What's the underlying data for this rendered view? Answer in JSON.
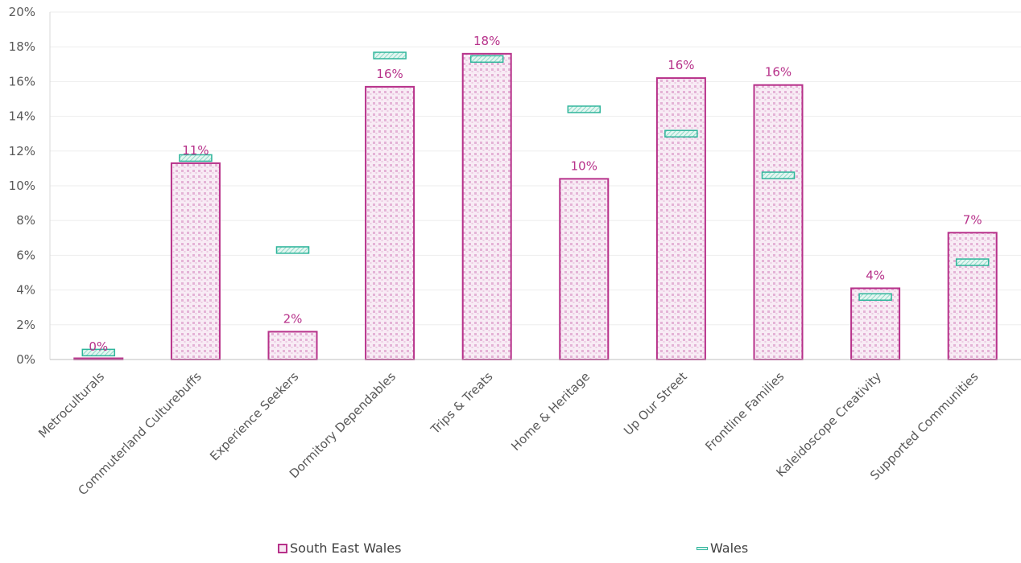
{
  "chart_data": {
    "type": "bar",
    "categories": [
      "Metroculturals",
      "Commuterland Culturebuffs",
      "Experience Seekers",
      "Dormitory Dependables",
      "Trips & Treats",
      "Home & Heritage",
      "Up Our Street",
      "Frontline Families",
      "Kaleidoscope Creativity",
      "Supported Communities"
    ],
    "series": [
      {
        "name": "South East Wales",
        "kind": "bar",
        "values": [
          0.0,
          11.3,
          1.6,
          15.7,
          17.6,
          10.4,
          16.2,
          15.8,
          4.1,
          7.3
        ],
        "labels": [
          "0%",
          "11%",
          "2%",
          "16%",
          "18%",
          "10%",
          "16%",
          "16%",
          "4%",
          "7%"
        ]
      },
      {
        "name": "Wales",
        "kind": "marker",
        "values": [
          0.4,
          11.6,
          6.3,
          17.5,
          17.3,
          14.4,
          13.0,
          10.6,
          3.6,
          5.6
        ]
      }
    ],
    "yticks": [
      "0%",
      "2%",
      "4%",
      "6%",
      "8%",
      "10%",
      "12%",
      "14%",
      "16%",
      "18%",
      "20%"
    ],
    "ylim": [
      0,
      20
    ],
    "grid": true,
    "legend": "bottom",
    "colors": {
      "bar_stroke": "#b7318a",
      "bar_fill": "#f7e6f2",
      "bar_dots": "#e8b9da",
      "marker_stroke": "#2fb59b",
      "marker_fill": "#d9f3ee",
      "label": "#b7318a",
      "axis_text": "#595959",
      "grid": "#ededed"
    }
  },
  "legend": {
    "south_east_wales": "South East Wales",
    "wales": "Wales"
  }
}
